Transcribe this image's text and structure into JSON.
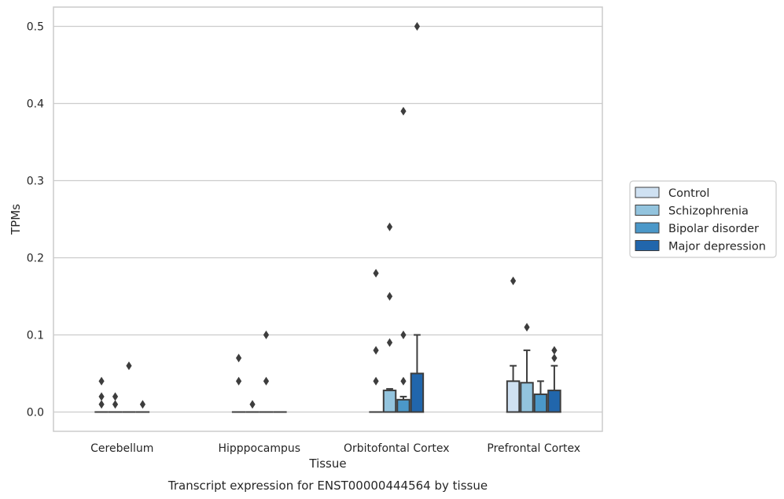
{
  "chart_data": {
    "type": "box",
    "caption": "Transcript expression for ENST00000444564 by tissue",
    "xlabel": "Tissue",
    "ylabel": "TPMs",
    "ylim": [
      -0.025,
      0.525
    ],
    "yticks": [
      0.0,
      0.1,
      0.2,
      0.3,
      0.4,
      0.5
    ],
    "ytick_labels": [
      "0.0",
      "0.1",
      "0.2",
      "0.3",
      "0.4",
      "0.5"
    ],
    "grid": "horizontal",
    "legend_position": "right",
    "categories": [
      "Cerebellum",
      "Hipppocampus",
      "Orbitofontal Cortex",
      "Prefrontal Cortex"
    ],
    "series": [
      {
        "name": "Control",
        "color": "#cfe1f2",
        "boxes": [
          {
            "q1": 0,
            "median": 0,
            "q3": 0,
            "whisker_low": 0,
            "whisker_high": 0,
            "outliers": [
              0.01,
              0.02,
              0.04
            ]
          },
          {
            "q1": 0,
            "median": 0,
            "q3": 0,
            "whisker_low": 0,
            "whisker_high": 0,
            "outliers": [
              0.04,
              0.07
            ]
          },
          {
            "q1": 0,
            "median": 0,
            "q3": 0,
            "whisker_low": 0,
            "whisker_high": 0,
            "outliers": [
              0.04,
              0.08,
              0.18
            ]
          },
          {
            "q1": 0,
            "median": 0,
            "q3": 0.04,
            "whisker_low": 0,
            "whisker_high": 0.06,
            "outliers": [
              0.17
            ]
          }
        ]
      },
      {
        "name": "Schizophrenia",
        "color": "#93c4de",
        "boxes": [
          {
            "q1": 0,
            "median": 0,
            "q3": 0,
            "whisker_low": 0,
            "whisker_high": 0,
            "outliers": [
              0.01,
              0.02
            ]
          },
          {
            "q1": 0,
            "median": 0,
            "q3": 0,
            "whisker_low": 0,
            "whisker_high": 0,
            "outliers": [
              0.01
            ]
          },
          {
            "q1": 0,
            "median": 0,
            "q3": 0.028,
            "whisker_low": 0,
            "whisker_high": 0.03,
            "outliers": [
              0.09,
              0.15,
              0.24
            ]
          },
          {
            "q1": 0,
            "median": 0,
            "q3": 0.038,
            "whisker_low": 0,
            "whisker_high": 0.08,
            "outliers": [
              0.11
            ]
          }
        ]
      },
      {
        "name": "Bipolar disorder",
        "color": "#4b98c9",
        "boxes": [
          {
            "q1": 0,
            "median": 0,
            "q3": 0,
            "whisker_low": 0,
            "whisker_high": 0,
            "outliers": [
              0.06
            ]
          },
          {
            "q1": 0,
            "median": 0,
            "q3": 0,
            "whisker_low": 0,
            "whisker_high": 0,
            "outliers": [
              0.04,
              0.1
            ]
          },
          {
            "q1": 0,
            "median": 0,
            "q3": 0.016,
            "whisker_low": 0,
            "whisker_high": 0.02,
            "outliers": [
              0.04,
              0.1,
              0.39
            ]
          },
          {
            "q1": 0,
            "median": 0,
            "q3": 0.023,
            "whisker_low": 0,
            "whisker_high": 0.04,
            "outliers": []
          }
        ]
      },
      {
        "name": "Major depression",
        "color": "#2166ac",
        "boxes": [
          {
            "q1": 0,
            "median": 0,
            "q3": 0,
            "whisker_low": 0,
            "whisker_high": 0,
            "outliers": [
              0.01
            ]
          },
          {
            "q1": 0,
            "median": 0,
            "q3": 0,
            "whisker_low": 0,
            "whisker_high": 0,
            "outliers": []
          },
          {
            "q1": 0,
            "median": 0,
            "q3": 0.05,
            "whisker_low": 0,
            "whisker_high": 0.1,
            "outliers": [
              0.5
            ]
          },
          {
            "q1": 0,
            "median": 0,
            "q3": 0.028,
            "whisker_low": 0,
            "whisker_high": 0.06,
            "outliers": [
              0.07,
              0.08
            ]
          }
        ]
      }
    ]
  }
}
